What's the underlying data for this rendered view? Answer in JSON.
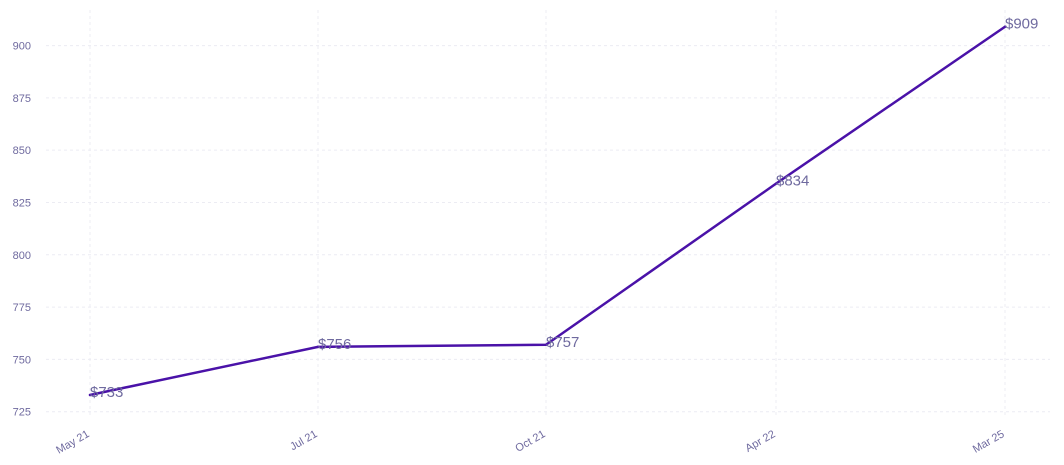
{
  "chart_data": {
    "type": "line",
    "categories": [
      "May 21",
      "Jul 21",
      "Oct 21",
      "Apr 22",
      "Mar 25"
    ],
    "series": [
      {
        "values": [
          733,
          756,
          757,
          834,
          909
        ],
        "data_labels": [
          "$733",
          "$756",
          "$757",
          "$834",
          "$909"
        ]
      }
    ],
    "y_ticks": [
      725,
      750,
      775,
      800,
      825,
      850,
      875,
      900
    ],
    "ylim": [
      722,
      917
    ],
    "grid": true,
    "line_color": "#4a12a8",
    "label_color": "#6f6a9f",
    "grid_color": "#ececf3"
  }
}
